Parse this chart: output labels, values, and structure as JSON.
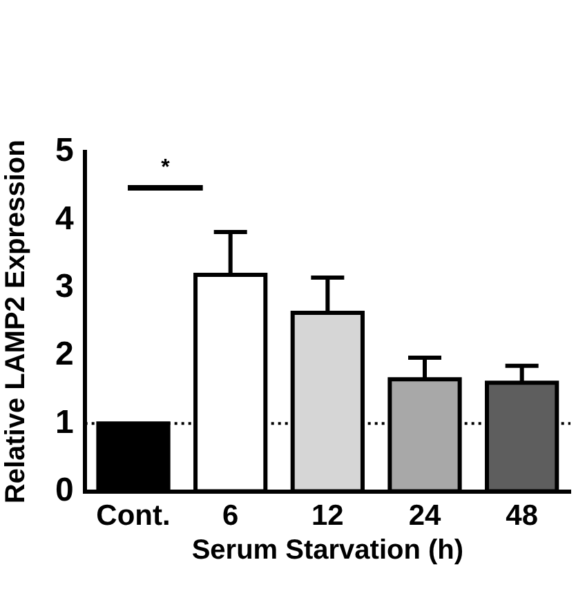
{
  "chart_data": {
    "type": "bar",
    "xlabel": "Serum Starvation (h)",
    "ylabel": "Relative LAMP2 Expression",
    "categories": [
      "Cont.",
      "6",
      "12",
      "24",
      "48"
    ],
    "values": [
      1.0,
      3.19,
      2.63,
      1.65,
      1.6
    ],
    "colors": [
      "#000000",
      "#ffffff",
      "#d6d6d6",
      "#a8a8a8",
      "#5e5e5e"
    ],
    "errors": [
      null,
      [
        3.19,
        3.82
      ],
      [
        2.63,
        3.15
      ],
      [
        1.65,
        1.97
      ],
      [
        1.6,
        1.85
      ]
    ],
    "ylim": [
      0,
      5
    ],
    "yticks": [
      0,
      1,
      2,
      3,
      4,
      5
    ],
    "ref_lines": [
      {
        "axis": "y",
        "value": 1,
        "line_style": "dotted"
      }
    ],
    "annotations": [
      "*"
    ]
  }
}
